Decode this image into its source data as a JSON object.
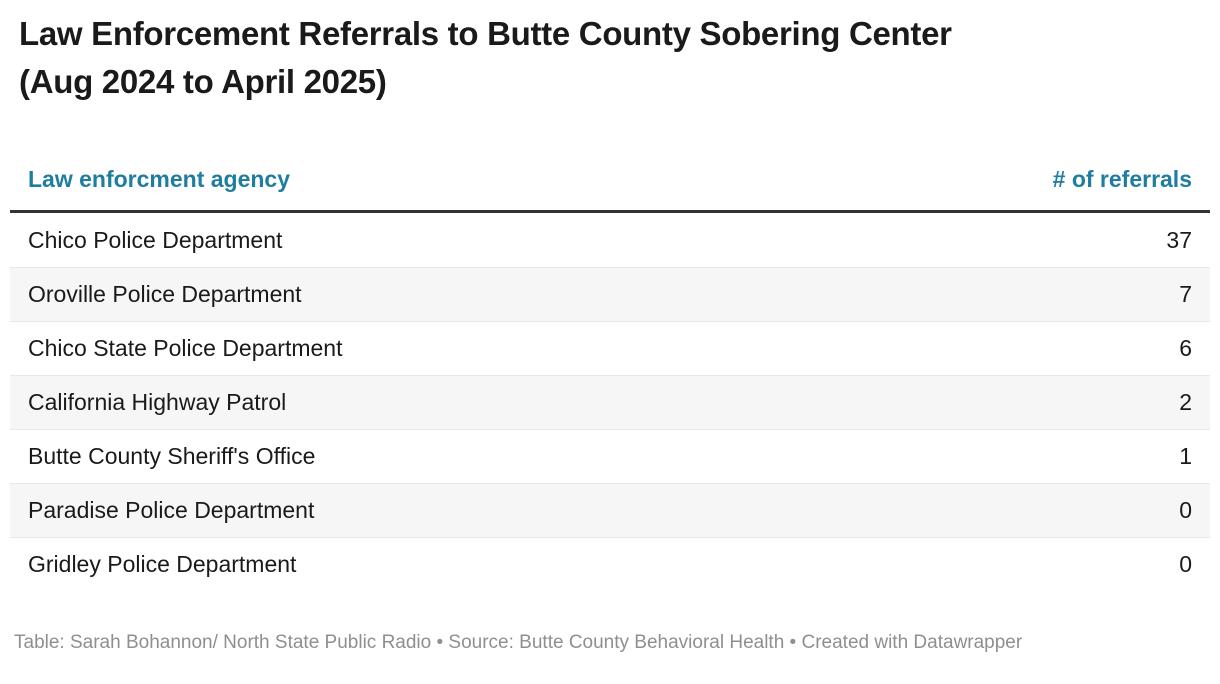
{
  "header": {
    "title_line1": "Law Enforcement Referrals to Butte County Sobering Center",
    "title_line2": "(Aug 2024 to April 2025)"
  },
  "table": {
    "columns": [
      {
        "label": "Law enforcment agency",
        "align": "left"
      },
      {
        "label": "# of referrals",
        "align": "right"
      }
    ],
    "rows": [
      {
        "agency": "Chico Police Department",
        "referrals": "37"
      },
      {
        "agency": "Oroville Police Department",
        "referrals": "7"
      },
      {
        "agency": "Chico State Police Department",
        "referrals": "6"
      },
      {
        "agency": "California Highway Patrol",
        "referrals": "2"
      },
      {
        "agency": "Butte County Sheriff's Office",
        "referrals": "1"
      },
      {
        "agency": "Paradise Police Department",
        "referrals": "0"
      },
      {
        "agency": "Gridley Police Department",
        "referrals": "0"
      }
    ]
  },
  "footer": {
    "text": "Table: Sarah Bohannon/ North State Public Radio • Source: Butte County Behavioral Health • Created with Datawrapper"
  },
  "colors": {
    "header_accent": "#1f7e9f",
    "rule": "#333333",
    "stripe": "#f6f6f6",
    "row_border": "#e8e8e8",
    "title": "#1a1a1a",
    "body_text": "#1a1a1a",
    "footer_text": "#8f8f8f"
  },
  "chart_data": {
    "type": "table",
    "title": "Law Enforcement Referrals to Butte County Sobering Center (Aug 2024 to April 2025)",
    "columns": [
      "Law enforcment agency",
      "# of referrals"
    ],
    "categories": [
      "Chico Police Department",
      "Oroville Police Department",
      "Chico State Police Department",
      "California Highway Patrol",
      "Butte County Sheriff's Office",
      "Paradise Police Department",
      "Gridley Police Department"
    ],
    "values": [
      37,
      7,
      6,
      2,
      1,
      0,
      0
    ],
    "layout": {
      "striped_rows": true,
      "stripe_pattern": "even rows shaded",
      "header_color": "#1f7e9f",
      "value_column_align": "right"
    }
  }
}
